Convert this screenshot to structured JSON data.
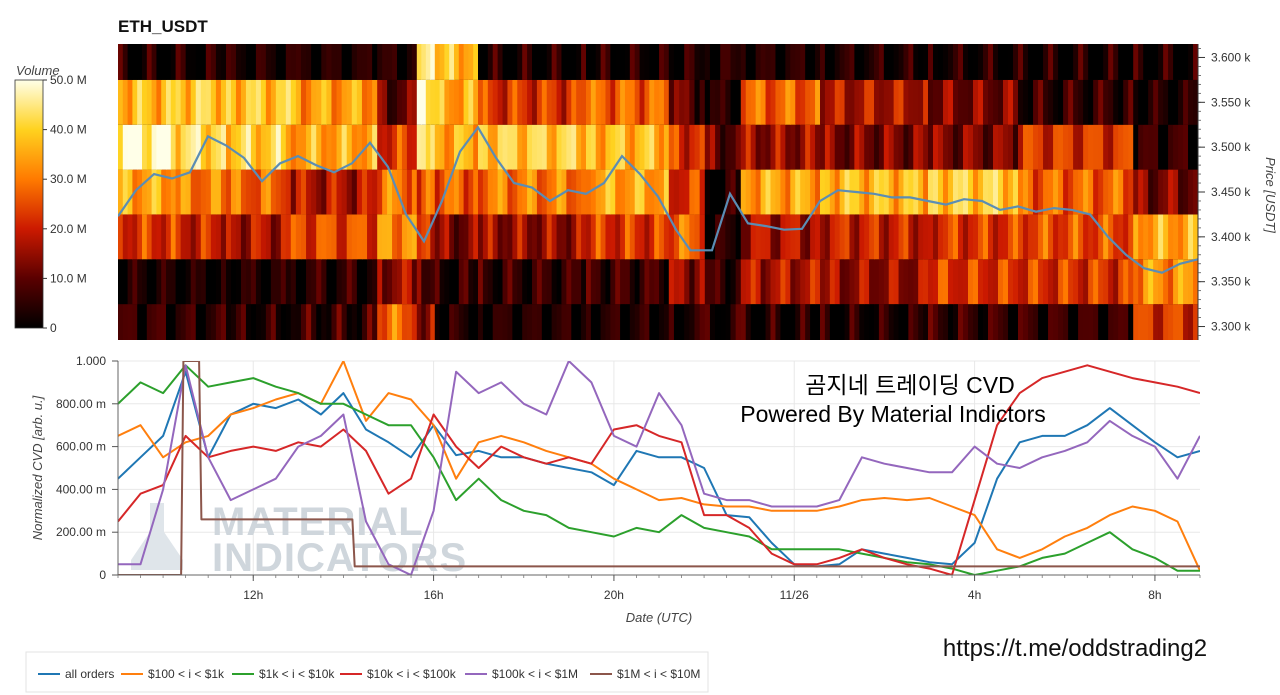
{
  "chart_data": [
    {
      "type": "heatmap",
      "title": "ETH_USDT",
      "colorbar": {
        "label": "Volume",
        "ticks": [
          "0",
          "10.0 M",
          "20.0 M",
          "30.0 M",
          "40.0 M",
          "50.0 M"
        ],
        "range": [
          0,
          50000000
        ]
      },
      "y_axis": {
        "label": "Price [USDT]",
        "ticks": [
          "3.300 k",
          "3.350 k",
          "3.400 k",
          "3.450 k",
          "3.500 k",
          "3.550 k",
          "3.600 k"
        ],
        "ylim": [
          3285,
          3615
        ]
      },
      "price_bands": [
        3300,
        3350,
        3400,
        3450,
        3500,
        3550,
        3600
      ],
      "x_range_hours": [
        0,
        30
      ],
      "heat_columns": [
        {
          "x": [
            0.0,
            1.6
          ],
          "v": [
            0.1,
            0.04,
            0.45,
            0.7,
            0.95,
            0.75,
            0.05
          ]
        },
        {
          "x": [
            1.6,
            3.0
          ],
          "v": [
            0.08,
            0.03,
            0.4,
            0.6,
            0.85,
            0.8,
            0.05
          ]
        },
        {
          "x": [
            3.0,
            4.8
          ],
          "v": [
            0.06,
            0.05,
            0.35,
            0.55,
            0.8,
            0.78,
            0.04
          ]
        },
        {
          "x": [
            4.8,
            7.2
          ],
          "v": [
            0.1,
            0.08,
            0.5,
            0.35,
            0.7,
            0.68,
            0.04
          ]
        },
        {
          "x": [
            7.2,
            8.3
          ],
          "v": [
            0.55,
            0.3,
            0.65,
            0.6,
            0.45,
            0.2,
            0.05
          ]
        },
        {
          "x": [
            8.3,
            8.8
          ],
          "v": [
            0.3,
            0.2,
            0.4,
            0.55,
            0.95,
            0.9,
            0.85
          ]
        },
        {
          "x": [
            8.8,
            10.0
          ],
          "v": [
            0.05,
            0.08,
            0.25,
            0.55,
            0.72,
            0.7,
            0.75
          ]
        },
        {
          "x": [
            10.0,
            13.0
          ],
          "v": [
            0.05,
            0.1,
            0.3,
            0.6,
            0.8,
            0.45,
            0.05
          ]
        },
        {
          "x": [
            13.0,
            15.3
          ],
          "v": [
            0.05,
            0.12,
            0.45,
            0.7,
            0.75,
            0.55,
            0.05
          ]
        },
        {
          "x": [
            15.3,
            16.3
          ],
          "v": [
            0.05,
            0.3,
            0.55,
            0.45,
            0.45,
            0.2,
            0.05
          ]
        },
        {
          "x": [
            16.3,
            17.3
          ],
          "v": [
            0.05,
            0.1,
            0.05,
            0.05,
            0.2,
            0.05,
            0.05
          ]
        },
        {
          "x": [
            17.3,
            19.5
          ],
          "v": [
            0.05,
            0.35,
            0.35,
            0.7,
            0.3,
            0.55,
            0.05
          ]
        },
        {
          "x": [
            19.5,
            22.5
          ],
          "v": [
            0.05,
            0.3,
            0.4,
            0.75,
            0.25,
            0.35,
            0.05
          ]
        },
        {
          "x": [
            22.5,
            25.0
          ],
          "v": [
            0.1,
            0.45,
            0.45,
            0.8,
            0.25,
            0.25,
            0.05
          ]
        },
        {
          "x": [
            25.0,
            28.2
          ],
          "v": [
            0.1,
            0.45,
            0.5,
            0.55,
            0.45,
            0.1,
            0.05
          ]
        },
        {
          "x": [
            28.2,
            30.0
          ],
          "v": [
            0.45,
            0.65,
            0.7,
            0.25,
            0.1,
            0.05,
            0.05
          ]
        }
      ],
      "price_line": {
        "color": "#5b8db4",
        "x": [
          0,
          0.5,
          1,
          1.5,
          2,
          2.5,
          3,
          3.5,
          4,
          4.5,
          5,
          5.5,
          6,
          6.5,
          7,
          7.5,
          8,
          8.5,
          9,
          9.5,
          10,
          10.5,
          11,
          11.5,
          12,
          12.5,
          13,
          13.5,
          14,
          14.5,
          15,
          15.5,
          15.9,
          16,
          16.5,
          17,
          17.5,
          18,
          18.5,
          19,
          19.5,
          20,
          20.5,
          21,
          21.5,
          22,
          22.5,
          23,
          23.5,
          24,
          24.5,
          25,
          25.5,
          26,
          26.5,
          27,
          27.5,
          28,
          28.5,
          29,
          29.5,
          30
        ],
        "y": [
          3423,
          3452,
          3470,
          3465,
          3472,
          3512,
          3502,
          3488,
          3462,
          3482,
          3490,
          3480,
          3472,
          3482,
          3505,
          3478,
          3425,
          3395,
          3440,
          3495,
          3522,
          3488,
          3460,
          3455,
          3440,
          3452,
          3448,
          3460,
          3490,
          3470,
          3445,
          3408,
          3385,
          3385,
          3385,
          3448,
          3415,
          3412,
          3408,
          3409,
          3440,
          3452,
          3450,
          3448,
          3444,
          3444,
          3440,
          3436,
          3442,
          3440,
          3430,
          3434,
          3428,
          3432,
          3430,
          3425,
          3400,
          3380,
          3365,
          3360,
          3370,
          3375
        ]
      }
    },
    {
      "type": "line",
      "xlabel": "Date (UTC)",
      "ylabel": "Normalized CVD [arb. u.]",
      "y_ticks": [
        "0",
        "200.00 m",
        "400.00 m",
        "600.00 m",
        "800.00 m",
        "1.000"
      ],
      "ylim": [
        0,
        1.0
      ],
      "x_ticks": [
        {
          "x": 3,
          "label": "12h"
        },
        {
          "x": 7,
          "label": "16h"
        },
        {
          "x": 11,
          "label": "20h"
        },
        {
          "x": 15,
          "label": "11/26"
        },
        {
          "x": 19,
          "label": "4h"
        },
        {
          "x": 23,
          "label": "8h"
        }
      ],
      "xlim_hours": [
        0,
        24
      ],
      "series": [
        {
          "name": "all orders",
          "color": "#1f77b4",
          "x": [
            0,
            0.5,
            1,
            1.5,
            2,
            2.5,
            3,
            3.5,
            4,
            4.5,
            5,
            5.5,
            6,
            6.5,
            7,
            7.5,
            8,
            8.5,
            9,
            9.5,
            10,
            10.5,
            11,
            11.5,
            12,
            12.5,
            13,
            13.5,
            14,
            14.5,
            15,
            15.5,
            16,
            16.5,
            17,
            17.5,
            18,
            18.5,
            19,
            19.5,
            20,
            20.5,
            21,
            21.5,
            22,
            22.5,
            23,
            23.5,
            24
          ],
          "y": [
            0.45,
            0.55,
            0.65,
            0.95,
            0.55,
            0.75,
            0.8,
            0.78,
            0.82,
            0.75,
            0.85,
            0.68,
            0.62,
            0.55,
            0.7,
            0.56,
            0.58,
            0.55,
            0.55,
            0.52,
            0.5,
            0.48,
            0.42,
            0.58,
            0.55,
            0.55,
            0.5,
            0.28,
            0.27,
            0.15,
            0.05,
            0.04,
            0.05,
            0.12,
            0.1,
            0.08,
            0.06,
            0.05,
            0.15,
            0.45,
            0.62,
            0.65,
            0.65,
            0.7,
            0.78,
            0.7,
            0.62,
            0.55,
            0.58
          ]
        },
        {
          "name": "$100 < i < $1k",
          "color": "#ff7f0e",
          "x": [
            0,
            0.5,
            1,
            1.5,
            2,
            2.5,
            3,
            3.5,
            4,
            4.5,
            5,
            5.5,
            6,
            6.5,
            7,
            7.5,
            8,
            8.5,
            9,
            9.5,
            10,
            10.5,
            11,
            11.5,
            12,
            12.5,
            13,
            13.5,
            14,
            14.5,
            15,
            15.5,
            16,
            16.5,
            17,
            17.5,
            18,
            18.5,
            19,
            19.5,
            20,
            20.5,
            21,
            21.5,
            22,
            22.5,
            23,
            23.5,
            24
          ],
          "y": [
            0.65,
            0.7,
            0.55,
            0.62,
            0.65,
            0.75,
            0.78,
            0.82,
            0.85,
            0.8,
            1.0,
            0.72,
            0.85,
            0.82,
            0.7,
            0.45,
            0.62,
            0.65,
            0.62,
            0.58,
            0.55,
            0.52,
            0.45,
            0.4,
            0.35,
            0.36,
            0.33,
            0.32,
            0.32,
            0.3,
            0.3,
            0.3,
            0.32,
            0.35,
            0.36,
            0.35,
            0.36,
            0.32,
            0.28,
            0.12,
            0.08,
            0.12,
            0.18,
            0.22,
            0.28,
            0.32,
            0.3,
            0.25,
            0.02
          ]
        },
        {
          "name": "$1k < i < $10k",
          "color": "#2ca02c",
          "x": [
            0,
            0.5,
            1,
            1.5,
            2,
            2.5,
            3,
            3.5,
            4,
            4.5,
            5,
            5.5,
            6,
            6.5,
            7,
            7.5,
            8,
            8.5,
            9,
            9.5,
            10,
            10.5,
            11,
            11.5,
            12,
            12.5,
            13,
            13.5,
            14,
            14.5,
            15,
            15.5,
            16,
            16.5,
            17,
            17.5,
            18,
            18.5,
            19,
            19.5,
            20,
            20.5,
            21,
            21.5,
            22,
            22.5,
            23,
            23.5,
            24
          ],
          "y": [
            0.8,
            0.9,
            0.85,
            0.98,
            0.88,
            0.9,
            0.92,
            0.88,
            0.85,
            0.8,
            0.8,
            0.75,
            0.7,
            0.7,
            0.55,
            0.35,
            0.45,
            0.35,
            0.3,
            0.28,
            0.22,
            0.2,
            0.18,
            0.22,
            0.2,
            0.28,
            0.22,
            0.2,
            0.18,
            0.12,
            0.12,
            0.12,
            0.12,
            0.1,
            0.08,
            0.06,
            0.05,
            0.03,
            0.0,
            0.02,
            0.04,
            0.08,
            0.1,
            0.15,
            0.2,
            0.12,
            0.08,
            0.02,
            0.02
          ]
        },
        {
          "name": "$10k < i < $100k",
          "color": "#d62728",
          "x": [
            0,
            0.5,
            1,
            1.5,
            2,
            2.5,
            3,
            3.5,
            4,
            4.5,
            5,
            5.5,
            6,
            6.5,
            7,
            7.5,
            8,
            8.5,
            9,
            9.5,
            10,
            10.5,
            11,
            11.5,
            12,
            12.5,
            13,
            13.5,
            14,
            14.5,
            15,
            15.5,
            16,
            16.5,
            17,
            17.5,
            18,
            18.5,
            19,
            19.5,
            20,
            20.5,
            21,
            21.5,
            22,
            22.5,
            23,
            23.5,
            24
          ],
          "y": [
            0.25,
            0.38,
            0.42,
            0.65,
            0.55,
            0.58,
            0.6,
            0.58,
            0.62,
            0.6,
            0.68,
            0.58,
            0.38,
            0.45,
            0.75,
            0.6,
            0.5,
            0.6,
            0.55,
            0.52,
            0.55,
            0.52,
            0.68,
            0.7,
            0.65,
            0.62,
            0.28,
            0.28,
            0.22,
            0.1,
            0.05,
            0.05,
            0.08,
            0.12,
            0.08,
            0.05,
            0.03,
            0.0,
            0.35,
            0.7,
            0.85,
            0.92,
            0.95,
            0.98,
            0.95,
            0.92,
            0.9,
            0.88,
            0.85
          ]
        },
        {
          "name": "$100k < i < $1M",
          "color": "#9467bd",
          "x": [
            0,
            0.5,
            1,
            1.5,
            2,
            2.5,
            3,
            3.5,
            4,
            4.5,
            5,
            5.5,
            6,
            6.5,
            7,
            7.5,
            8,
            8.5,
            9,
            9.5,
            10,
            10.5,
            11,
            11.5,
            12,
            12.5,
            13,
            13.5,
            14,
            14.5,
            15,
            15.5,
            16,
            16.5,
            17,
            17.5,
            18,
            18.5,
            19,
            19.5,
            20,
            20.5,
            21,
            21.5,
            22,
            22.5,
            23,
            23.5,
            24
          ],
          "y": [
            0.05,
            0.05,
            0.4,
            0.98,
            0.55,
            0.35,
            0.4,
            0.45,
            0.6,
            0.65,
            0.75,
            0.25,
            0.05,
            0.0,
            0.3,
            0.95,
            0.85,
            0.9,
            0.8,
            0.75,
            1.0,
            0.9,
            0.65,
            0.6,
            0.85,
            0.7,
            0.38,
            0.35,
            0.35,
            0.32,
            0.32,
            0.32,
            0.35,
            0.55,
            0.52,
            0.5,
            0.48,
            0.48,
            0.6,
            0.52,
            0.5,
            0.55,
            0.58,
            0.62,
            0.72,
            0.65,
            0.6,
            0.45,
            0.65
          ]
        },
        {
          "name": "$1M < i < $10M",
          "color": "#8c564b",
          "x": [
            0,
            1.4,
            1.45,
            1.55,
            1.8,
            1.85,
            2.5,
            5.2,
            5.25,
            5.3,
            24
          ],
          "y": [
            0.0,
            0.0,
            1.0,
            1.0,
            1.0,
            0.26,
            0.26,
            0.26,
            0.04,
            0.04,
            0.04
          ]
        }
      ]
    }
  ],
  "overlay": {
    "korean": "곰지네 트레이딩 CVD",
    "powered": "Powered By Material Indictors",
    "url": "https://t.me/oddstrading2",
    "watermark_line1": "MATERIAL",
    "watermark_line2": "INDICATORS"
  },
  "legend": [
    "all orders",
    "$100 < i < $1k",
    "$1k < i < $10k",
    "$10k < i < $100k",
    "$100k < i < $1M",
    "$1M < i < $10M"
  ]
}
